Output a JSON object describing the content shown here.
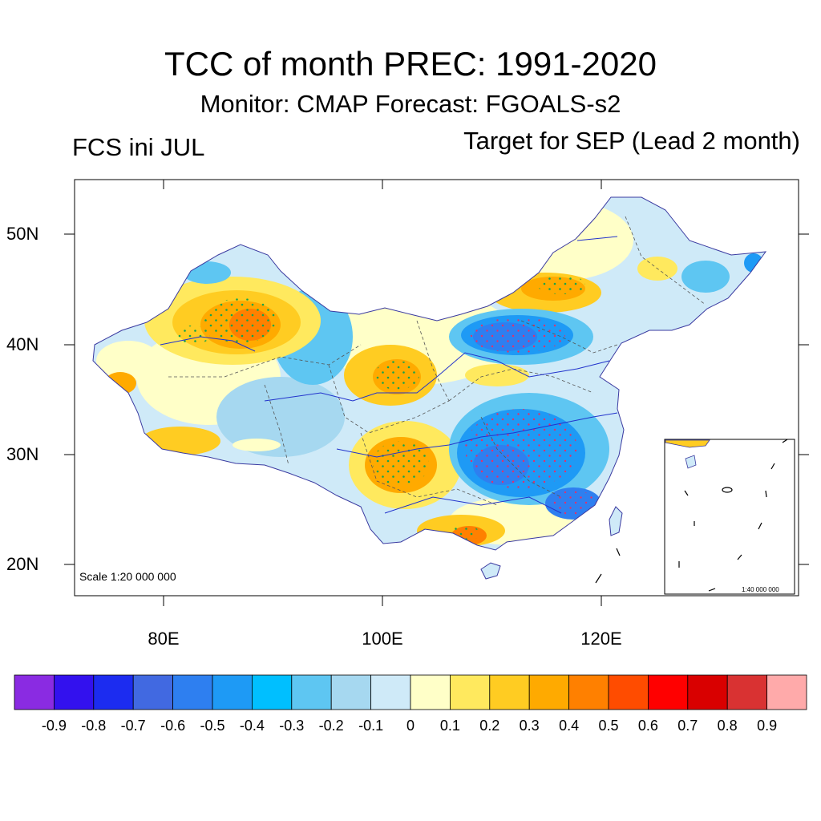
{
  "title": "TCC of month PREC: 1991-2020",
  "subtitle": "Monitor: CMAP   Forecast: FGOALS-s2",
  "left_label": "FCS ini JUL",
  "right_label": "Target for SEP (Lead 2 month)",
  "axes": {
    "y_ticks": [
      "50N",
      "40N",
      "30N",
      "20N"
    ],
    "x_ticks": [
      "80E",
      "100E",
      "120E"
    ]
  },
  "scale_main": "Scale 1:20 000 000",
  "scale_inset": "1:40 000 000",
  "colorbar": {
    "labels": [
      "-0.9",
      "-0.8",
      "-0.7",
      "-0.6",
      "-0.5",
      "-0.4",
      "-0.3",
      "-0.2",
      "-0.1",
      "0",
      "0.1",
      "0.2",
      "0.3",
      "0.4",
      "0.5",
      "0.6",
      "0.7",
      "0.8",
      "0.9"
    ],
    "colors": [
      "#8a2be2",
      "#3311ee",
      "#1c2cf0",
      "#4169e1",
      "#2e7ff0",
      "#1e9af5",
      "#00bfff",
      "#5ec6f2",
      "#a6d8f0",
      "#cfeaf8",
      "#ffffc8",
      "#ffe95e",
      "#ffcc22",
      "#ffaa00",
      "#ff8000",
      "#ff4c00",
      "#ff0000",
      "#d90000",
      "#d93232",
      "#ffaaaa"
    ]
  }
}
